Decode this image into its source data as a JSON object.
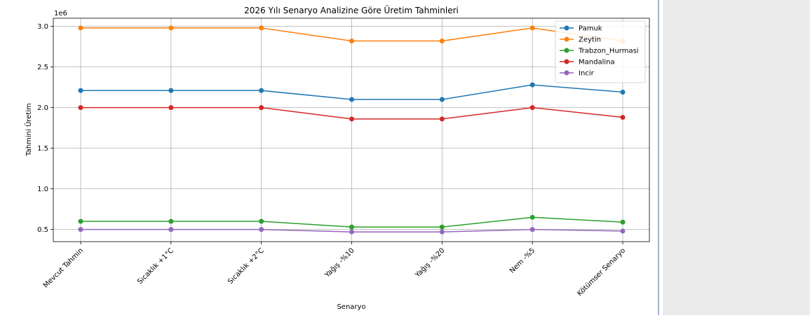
{
  "chart_data": {
    "type": "line",
    "title": "2026 Yılı Senaryo Analizine Göre Üretim Tahminleri",
    "xlabel": "Senaryo",
    "ylabel": "Tahmini Üretim",
    "y_offset_label": "1e6",
    "y_multiplier": 1000000,
    "ylim": [
      0.35,
      3.1
    ],
    "yticks": [
      "0.5",
      "1.0",
      "1.5",
      "2.0",
      "2.5",
      "3.0"
    ],
    "grid": true,
    "legend_position": "top-right",
    "categories": [
      "Mevcut Tahmin",
      "Sıcaklık +1°C",
      "Sıcaklık +2°C",
      "Yağış -%10",
      "Yağış -%20",
      "Nem -%5",
      "Kötümser Senaryo"
    ],
    "series": [
      {
        "name": "Pamuk",
        "color": "#1f77b4",
        "values": [
          2.21,
          2.21,
          2.21,
          2.1,
          2.1,
          2.28,
          2.19
        ]
      },
      {
        "name": "Zeytin",
        "color": "#ff7f0e",
        "values": [
          2.98,
          2.98,
          2.98,
          2.82,
          2.82,
          2.98,
          2.82
        ]
      },
      {
        "name": "Trabzon_Hurmasi",
        "color": "#2ca02c",
        "values": [
          0.6,
          0.6,
          0.6,
          0.53,
          0.53,
          0.65,
          0.59
        ]
      },
      {
        "name": "Mandalina",
        "color": "#d62728",
        "values": [
          2.0,
          2.0,
          2.0,
          1.86,
          1.86,
          2.0,
          1.88
        ]
      },
      {
        "name": "Incir",
        "color": "#9467bd",
        "values": [
          0.5,
          0.5,
          0.5,
          0.47,
          0.47,
          0.5,
          0.48
        ]
      }
    ]
  }
}
